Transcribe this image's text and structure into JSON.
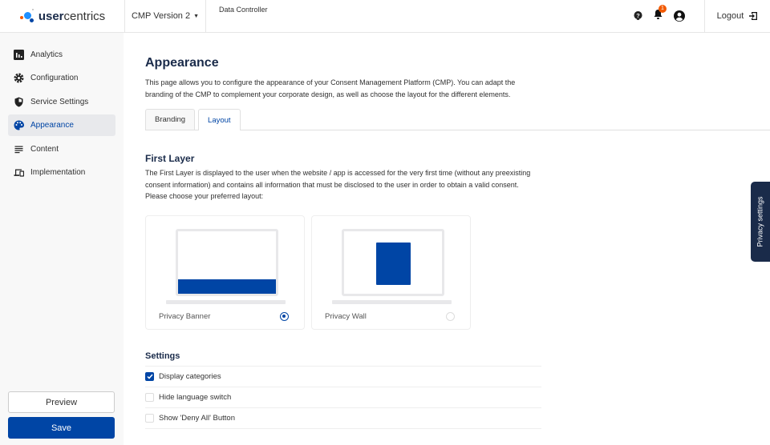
{
  "header": {
    "logo": {
      "bold": "user",
      "rest": "centrics"
    },
    "cmp_version": "CMP Version 2",
    "data_controller": "Data Controller",
    "notification_count": "1",
    "logout": "Logout"
  },
  "sidebar": {
    "items": [
      {
        "label": "Analytics",
        "icon": "bar-chart-icon"
      },
      {
        "label": "Configuration",
        "icon": "gear-icon"
      },
      {
        "label": "Service Settings",
        "icon": "shield-icon"
      },
      {
        "label": "Appearance",
        "icon": "palette-icon",
        "active": true
      },
      {
        "label": "Content",
        "icon": "lines-icon"
      },
      {
        "label": "Implementation",
        "icon": "devices-icon"
      }
    ],
    "preview": "Preview",
    "save": "Save"
  },
  "main": {
    "title": "Appearance",
    "description": "This page allows you to configure the appearance of your Consent Management Platform (CMP). You can adapt the branding of the CMP to complement your corporate design, as well as choose the layout for the different elements.",
    "tabs": [
      {
        "label": "Branding"
      },
      {
        "label": "Layout",
        "active": true
      }
    ],
    "first_layer": {
      "title": "First Layer",
      "description": "The First Layer is displayed to the user when the website / app is accessed for the very first time (without any preexisting consent information) and contains all information that must be disclosed to the user in order to obtain a valid consent. Please choose your preferred layout:",
      "options": [
        {
          "label": "Privacy Banner",
          "selected": true
        },
        {
          "label": "Privacy Wall",
          "selected": false
        }
      ]
    },
    "settings": {
      "title": "Settings",
      "items": [
        {
          "label": "Display categories",
          "checked": true
        },
        {
          "label": "Hide language switch",
          "checked": false
        },
        {
          "label": "Show 'Deny All' Button",
          "checked": false
        }
      ]
    }
  },
  "privacy_tab": "Privacy settings",
  "colors": {
    "accent": "#0045a5",
    "navy": "#1a2b4a",
    "badge": "#f25900"
  }
}
